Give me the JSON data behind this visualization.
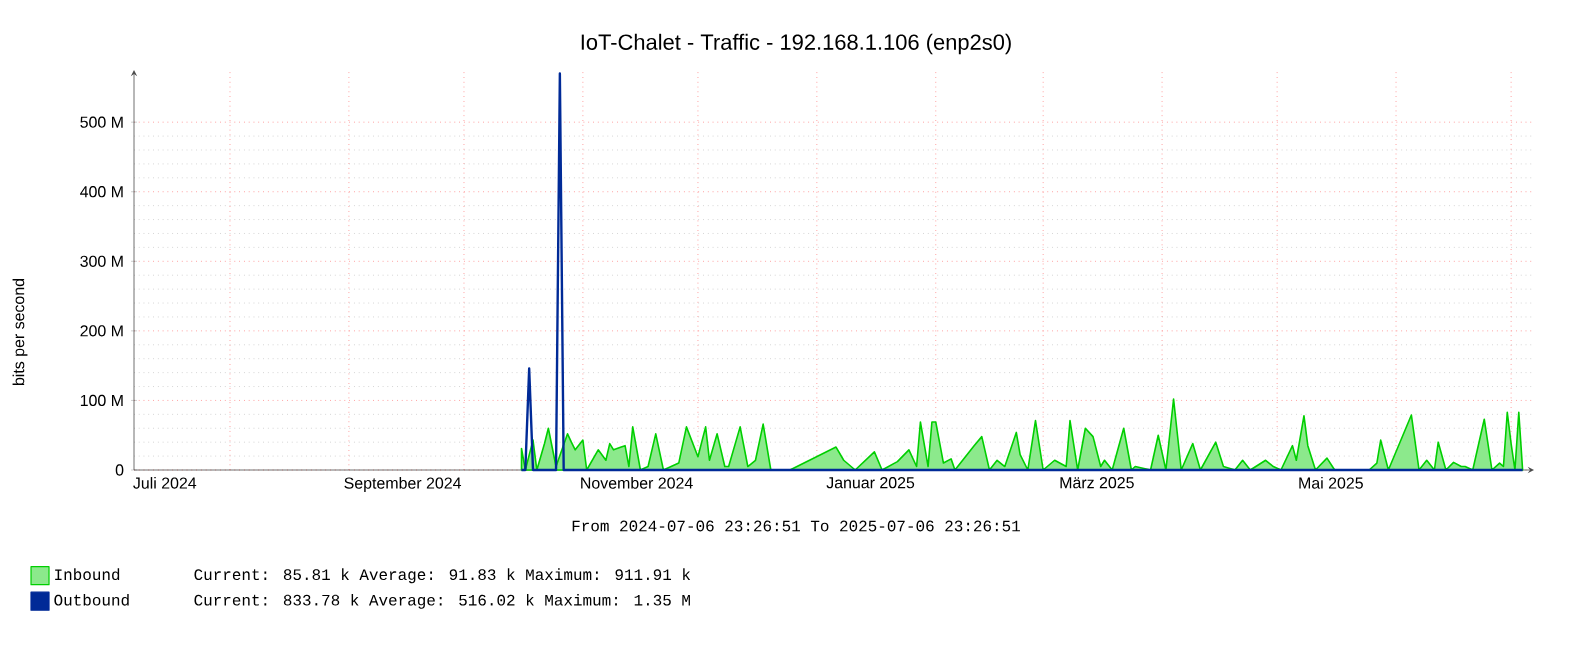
{
  "chart_data": {
    "type": "area",
    "title": "IoT-Chalet - Traffic - 192.168.1.106 (enp2s0)",
    "ylabel": "bits per second",
    "annotations": [
      "From 2024-07-06 23:26:51 To 2025-07-06 23:26:51",
      "Current:   85.81 k  Average:   91.83 k  Maximum:  911.91 k",
      "Current:  833.78 k  Average:  516.02 k  Maximum:    1.35 M"
    ],
    "xlim": [
      "2024-07-06T23:26",
      "2025-07-06T23:26"
    ],
    "ylim": [
      0,
      575
    ],
    "xticks": [
      {
        "value": "2024-07-15",
        "label": "Juli 2024"
      },
      {
        "value": "2024-09-15",
        "label": "September 2024"
      },
      {
        "value": "2024-11-15",
        "label": "November 2024"
      },
      {
        "value": "2025-01-15",
        "label": "Januar 2025"
      },
      {
        "value": "2025-03-15",
        "label": "März 2025"
      },
      {
        "value": "2025-05-15",
        "label": "Mai 2025"
      },
      {
        "value": "2024-08-01",
        "label": null
      },
      {
        "value": "2024-09-01",
        "label": null
      },
      {
        "value": "2024-10-01",
        "label": null
      },
      {
        "value": "2024-11-01",
        "label": null
      },
      {
        "value": "2024-12-01",
        "label": null
      },
      {
        "value": "2025-01-01",
        "label": null
      },
      {
        "value": "2025-02-01",
        "label": null
      },
      {
        "value": "2025-03-01",
        "label": null
      },
      {
        "value": "2025-04-01",
        "label": null
      },
      {
        "value": "2025-05-01",
        "label": null
      },
      {
        "value": "2025-06-01",
        "label": null
      },
      {
        "value": "2025-07-01",
        "label": null
      }
    ],
    "yticks": [
      0,
      {
        "value": 100,
        "label": "100 M"
      },
      {
        "value": 200,
        "label": "200 M"
      },
      {
        "value": 300,
        "label": "300 M"
      },
      {
        "value": 400,
        "label": "400 M"
      },
      {
        "value": 500,
        "label": "500 M"
      }
    ],
    "grid": true,
    "legend": "bottom",
    "series": [
      {
        "name": "Inbound",
        "color": "#00cf00",
        "x": [
          "2024-10-16",
          "2024-10-17",
          "2024-10-19",
          "2024-10-20",
          "2024-10-22",
          "2024-10-23",
          "2024-10-25",
          "2024-10-28",
          "2024-10-29",
          "2024-10-30",
          "2024-11-01",
          "2024-11-02",
          "2024-11-05",
          "2024-11-07",
          "2024-11-08",
          "2024-11-09",
          "2024-11-11",
          "2024-11-12",
          "2024-11-13",
          "2024-11-14",
          "2024-11-16",
          "2024-11-18",
          "2024-11-20",
          "2024-11-22",
          "2024-11-26",
          "2024-11-28",
          "2024-12-01",
          "2024-12-03",
          "2024-12-04",
          "2024-12-06",
          "2024-12-08",
          "2024-12-09",
          "2024-12-12",
          "2024-12-14",
          "2024-12-16",
          "2024-12-18",
          "2024-12-20",
          "2024-12-25",
          "2025-01-06",
          "2025-01-08",
          "2025-01-11",
          "2025-01-16",
          "2025-01-18",
          "2025-01-22",
          "2025-01-25",
          "2025-01-27",
          "2025-01-28",
          "2025-01-30",
          "2025-01-31",
          "2025-02-01",
          "2025-02-03",
          "2025-02-05",
          "2025-02-06",
          "2025-02-11",
          "2025-02-13",
          "2025-02-15",
          "2025-02-17",
          "2025-02-19",
          "2025-02-22",
          "2025-02-23",
          "2025-02-25",
          "2025-02-27",
          "2025-03-01",
          "2025-03-04",
          "2025-03-07",
          "2025-03-08",
          "2025-03-10",
          "2025-03-12",
          "2025-03-14",
          "2025-03-16",
          "2025-03-17",
          "2025-03-19",
          "2025-03-22",
          "2025-03-24",
          "2025-03-25",
          "2025-03-29",
          "2025-03-31",
          "2025-04-02",
          "2025-04-04",
          "2025-04-06",
          "2025-04-09",
          "2025-04-11",
          "2025-04-15",
          "2025-04-17",
          "2025-04-20",
          "2025-04-22",
          "2025-04-24",
          "2025-04-28",
          "2025-04-30",
          "2025-05-02",
          "2025-05-05",
          "2025-05-06",
          "2025-05-08",
          "2025-05-09",
          "2025-05-11",
          "2025-05-14",
          "2025-05-16",
          "2025-05-25",
          "2025-05-27",
          "2025-05-28",
          "2025-05-30",
          "2025-06-05",
          "2025-06-07",
          "2025-06-09",
          "2025-06-11",
          "2025-06-12",
          "2025-06-14",
          "2025-06-16",
          "2025-06-18",
          "2025-06-19",
          "2025-06-21",
          "2025-06-24",
          "2025-06-26",
          "2025-06-28",
          "2025-06-29",
          "2025-06-30",
          "2025-07-01",
          "2025-07-02",
          "2025-07-03",
          "2025-07-04"
        ],
        "values": [
          31,
          0,
          43,
          0,
          38,
          60,
          5,
          52,
          40,
          29,
          43,
          0,
          29,
          14,
          38,
          29,
          33,
          35,
          5,
          62,
          0,
          5,
          52,
          0,
          10,
          62,
          19,
          62,
          14,
          52,
          5,
          5,
          62,
          5,
          14,
          66,
          0,
          0,
          33,
          14,
          0,
          26,
          0,
          12,
          29,
          5,
          69,
          5,
          69,
          69,
          10,
          16,
          0,
          35,
          48,
          0,
          14,
          5,
          54,
          22,
          0,
          71,
          0,
          14,
          5,
          71,
          0,
          60,
          48,
          5,
          14,
          0,
          60,
          0,
          5,
          0,
          50,
          0,
          102,
          0,
          38,
          0,
          40,
          5,
          0,
          14,
          0,
          14,
          5,
          0,
          35,
          14,
          78,
          35,
          0,
          17,
          0,
          0,
          10,
          43,
          0,
          79,
          0,
          14,
          0,
          40,
          0,
          11,
          5,
          5,
          0,
          73,
          0,
          10,
          5,
          83,
          38,
          0,
          83,
          0
        ]
      },
      {
        "name": "Outbound",
        "type": "line",
        "color": "#002a97",
        "x": [
          "2024-10-16",
          "2024-10-17",
          "2024-10-18",
          "2024-10-19",
          "2024-10-25",
          "2024-10-26",
          "2024-10-27",
          "2025-07-04"
        ],
        "values": [
          0,
          0,
          146,
          0,
          0,
          570,
          0,
          0
        ]
      }
    ]
  }
}
